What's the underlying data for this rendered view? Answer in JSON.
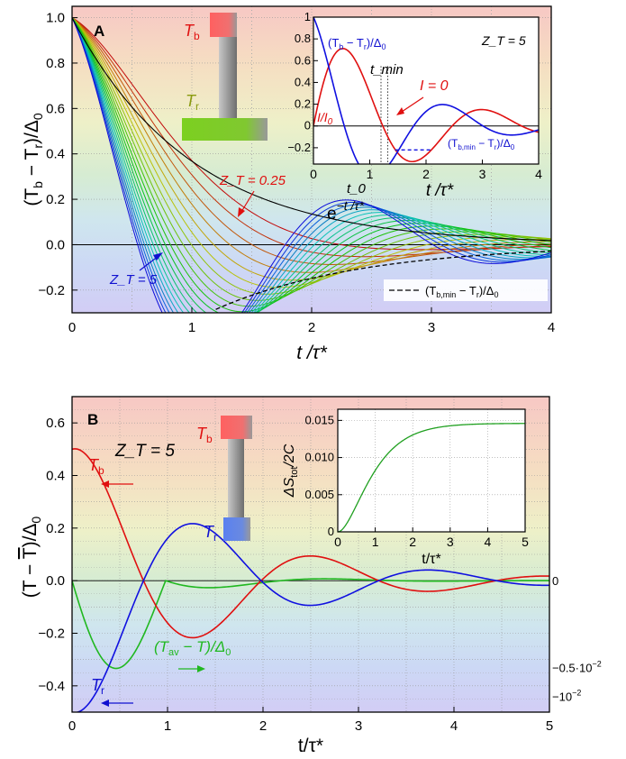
{
  "chart_data": [
    {
      "panel": "A",
      "type": "line",
      "ylabel_parts": [
        "(T",
        "b",
        " − T",
        "r",
        ")/Δ",
        "0"
      ],
      "xlabel": "t /τ*",
      "xlim": [
        0,
        4
      ],
      "ylim": [
        -0.3,
        1.05
      ],
      "xticks": [
        0,
        1,
        2,
        3,
        4
      ],
      "yticks": [
        -0.2,
        0.0,
        0.2,
        0.4,
        0.6,
        0.8,
        1.0
      ],
      "grid": true,
      "background": "rainbow horizontal bands (red top to blue bottom)",
      "family_range_ZT": [
        0.25,
        5
      ],
      "family_count": 20,
      "family_color_order": "red (Z_T = 0.25) to blue (Z_T = 5)",
      "reference_curve": "e^(−t/τ*)",
      "minimum_curve": "(T_b,min − T_r)/Δ_0",
      "annotations": {
        "z_low": "Z_T = 0.25",
        "z_high": "Z_T = 5",
        "exp_label": "e",
        "exp_sup": "−t /τ*",
        "min_legend_parts": [
          "(T",
          "b,min",
          " − T",
          "r",
          ")/Δ",
          "0"
        ],
        "tb_label": "T",
        "tb_sub": "b",
        "tr_label": "T",
        "tr_sub": "r"
      },
      "inset": {
        "xlabel": "t /τ*",
        "xlim": [
          0,
          4
        ],
        "ylim": [
          -0.35,
          1.0
        ],
        "xticks": [
          0,
          1,
          2,
          3,
          4
        ],
        "yticks": [
          -0.2,
          0.0,
          0.2,
          0.4,
          0.6,
          0.8,
          1.0
        ],
        "zt_label": "Z_T = 5",
        "series_labels": {
          "diff_parts": [
            "(T",
            "b",
            " − T",
            "r",
            ")/Δ",
            "0"
          ],
          "current_parts": [
            "I/I",
            "0"
          ],
          "min_parts": [
            "(T",
            "b,min",
            " − T",
            "r",
            ")/Δ",
            "0"
          ]
        },
        "tmin_label": "t_min",
        "t0_label": "t_0",
        "izero_label": "I = 0"
      }
    },
    {
      "panel": "B",
      "type": "line",
      "ylabel_parts": [
        "(T − ",
        "T",
        ")/Δ",
        "0"
      ],
      "xlabel": "t/τ*",
      "xlim": [
        0,
        5
      ],
      "ylim": [
        -0.5,
        0.7
      ],
      "xticks": [
        0,
        1,
        2,
        3,
        4,
        5
      ],
      "yticks": [
        -0.4,
        -0.2,
        0.0,
        0.2,
        0.4,
        0.6
      ],
      "right_axis_ticks": [
        "0",
        "−0.5·10",
        "−10"
      ],
      "right_axis_exps": [
        "",
        "−2",
        "−2"
      ],
      "grid": true,
      "zt_label": "Z_T = 5",
      "series": [
        {
          "name": "T_b",
          "color": "#e01010",
          "start": 0.5
        },
        {
          "name": "T_r",
          "color": "#1010e0",
          "start": -0.5
        },
        {
          "name": "(T_av − T)/Δ_0",
          "color": "#20b820",
          "right_axis": true
        }
      ],
      "labels": {
        "tb": "T",
        "tb_sub": "b",
        "tr": "T",
        "tr_sub": "r",
        "tav_parts": [
          "(T",
          "av",
          " − T)/Δ",
          "0"
        ]
      },
      "inset": {
        "ylabel_parts": [
          "ΔS",
          "tot",
          "/2C"
        ],
        "xlabel": "t/τ*",
        "xlim": [
          0,
          5
        ],
        "ylim": [
          0,
          0.0165
        ],
        "xticks": [
          0,
          1,
          2,
          3,
          4,
          5
        ],
        "yticks": [
          "0",
          "0.005",
          "0.010",
          "0.015"
        ],
        "plateau": 0.0146
      }
    }
  ]
}
